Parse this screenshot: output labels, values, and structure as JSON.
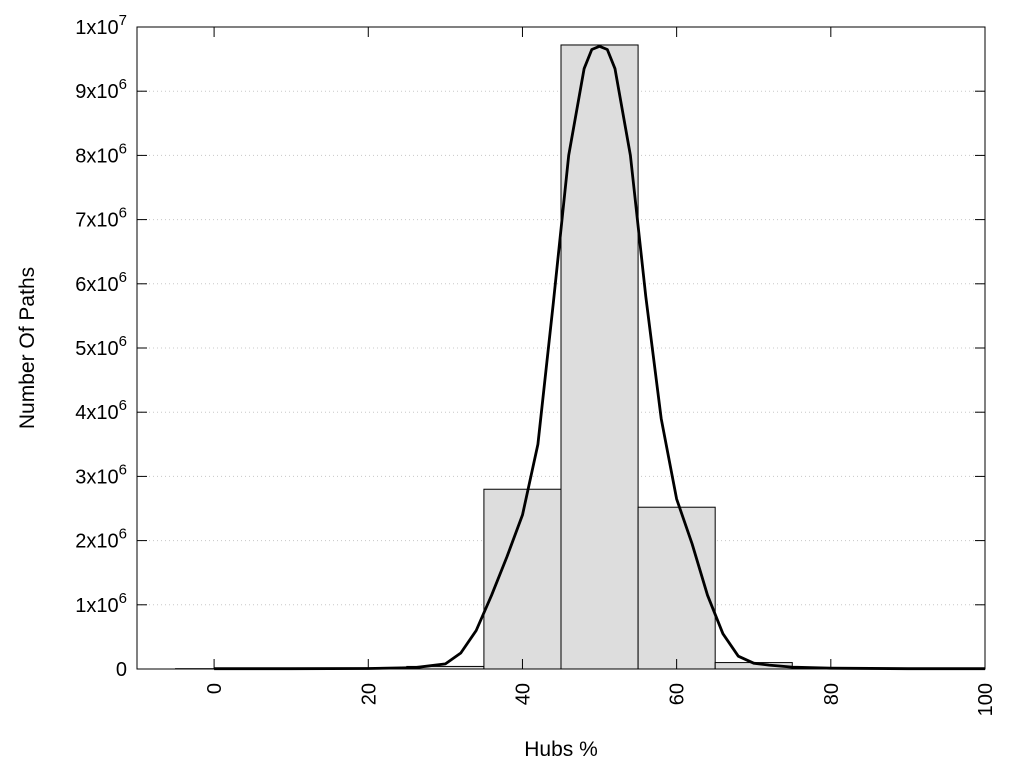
{
  "chart_data": {
    "type": "bar",
    "title": "",
    "xlabel": "Hubs %",
    "ylabel": "Number Of Paths",
    "xlim": [
      -10,
      100
    ],
    "ylim": [
      0,
      10000000
    ],
    "grid": "horizontal dotted",
    "x_ticks": [
      {
        "value": 0,
        "label": "0"
      },
      {
        "value": 20,
        "label": "20"
      },
      {
        "value": 40,
        "label": "40"
      },
      {
        "value": 60,
        "label": "60"
      },
      {
        "value": 80,
        "label": "80"
      },
      {
        "value": 100,
        "label": "100"
      }
    ],
    "y_ticks": [
      {
        "value": 0,
        "base": "0",
        "exp": ""
      },
      {
        "value": 1000000,
        "base": "1x10",
        "exp": "6"
      },
      {
        "value": 2000000,
        "base": "2x10",
        "exp": "6"
      },
      {
        "value": 3000000,
        "base": "3x10",
        "exp": "6"
      },
      {
        "value": 4000000,
        "base": "4x10",
        "exp": "6"
      },
      {
        "value": 5000000,
        "base": "5x10",
        "exp": "6"
      },
      {
        "value": 6000000,
        "base": "6x10",
        "exp": "6"
      },
      {
        "value": 7000000,
        "base": "7x10",
        "exp": "6"
      },
      {
        "value": 8000000,
        "base": "8x10",
        "exp": "6"
      },
      {
        "value": 9000000,
        "base": "9x10",
        "exp": "6"
      },
      {
        "value": 10000000,
        "base": "1x10",
        "exp": "7"
      }
    ],
    "histogram": {
      "bin_width": 10,
      "bins": [
        {
          "center": 0,
          "value": 5000
        },
        {
          "center": 10,
          "value": 4000
        },
        {
          "center": 20,
          "value": 8000
        },
        {
          "center": 30,
          "value": 40000
        },
        {
          "center": 40,
          "value": 2800000
        },
        {
          "center": 50,
          "value": 9720000
        },
        {
          "center": 60,
          "value": 2520000
        },
        {
          "center": 70,
          "value": 100000
        },
        {
          "center": 80,
          "value": 8000
        },
        {
          "center": 90,
          "value": 3000
        }
      ],
      "fill": "#dddddd",
      "stroke": "#000000"
    },
    "fit_curve": {
      "type": "line",
      "color": "#000000",
      "x": [
        0,
        10,
        20,
        26,
        30,
        32,
        34,
        36,
        38,
        40,
        42,
        44,
        46,
        48,
        49,
        50,
        51,
        52,
        54,
        56,
        58,
        60,
        62,
        64,
        66,
        68,
        70,
        72,
        75,
        80,
        90,
        100
      ],
      "y": [
        5000,
        5000,
        8000,
        20000,
        80000,
        250000,
        600000,
        1150000,
        1750000,
        2400000,
        3500000,
        5700000,
        8000000,
        9350000,
        9650000,
        9700000,
        9650000,
        9350000,
        8000000,
        5800000,
        3900000,
        2650000,
        1950000,
        1150000,
        550000,
        200000,
        90000,
        60000,
        30000,
        12000,
        5000,
        4000
      ]
    }
  }
}
